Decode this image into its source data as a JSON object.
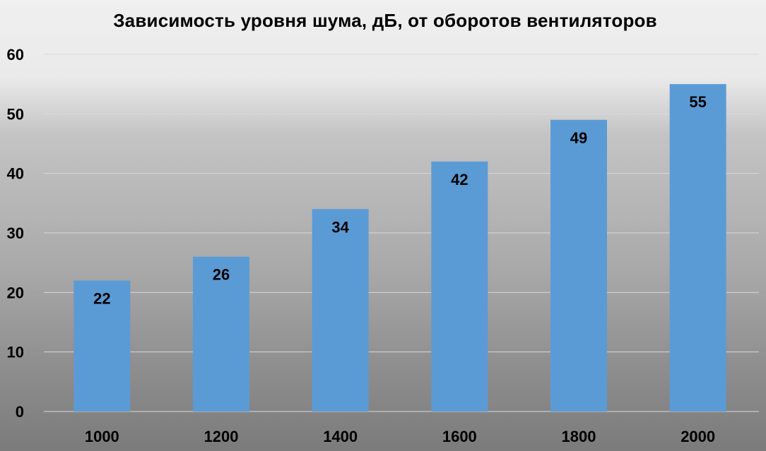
{
  "chart_data": {
    "type": "bar",
    "title": "Зависимость уровня шума, дБ, от оборотов вентиляторов",
    "categories": [
      "1000",
      "1200",
      "1400",
      "1600",
      "1800",
      "2000"
    ],
    "values": [
      22,
      26,
      34,
      42,
      49,
      55
    ],
    "y_ticks": [
      "0",
      "10",
      "20",
      "30",
      "40",
      "50",
      "60"
    ],
    "ylim": [
      0,
      60
    ],
    "grid": true,
    "legend": "none",
    "data_labels": "inside-end",
    "bar_color": "#5b9bd5",
    "gridline_color": "#d9d9d9"
  }
}
